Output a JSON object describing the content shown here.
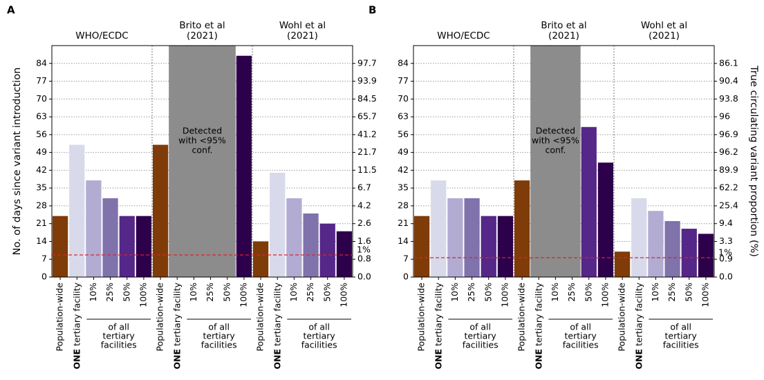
{
  "chart_data": [
    {
      "type": "bar",
      "panel_label": "A",
      "ylabel": "No. of days since variant introduction",
      "ylim": [
        0,
        91
      ],
      "yticks": [
        0,
        7,
        14,
        21,
        28,
        35,
        42,
        49,
        56,
        63,
        70,
        77,
        84
      ],
      "y2ticks": [
        {
          "value": 0,
          "label": "0.0"
        },
        0.8,
        1.6,
        2.6,
        4.2,
        6.7,
        11.5,
        21.7,
        41.2,
        65.7,
        84.5,
        93.9,
        97.7
      ],
      "grid": true,
      "categories": [
        "Population-wide",
        "ONE tertiary facility",
        "10%",
        "25%",
        "50%",
        "100%"
      ],
      "colors": [
        "#7f3b08",
        "#d8daeb",
        "#b2abd2",
        "#8073ac",
        "#542788",
        "#2d004b"
      ],
      "subgroup_label": [
        "of all",
        "tertiary",
        "facilities"
      ],
      "annotation": [
        "Detected",
        "with <95%",
        "conf."
      ],
      "threshold": 8.7,
      "threshold_label": "1%",
      "groups": [
        {
          "name": [
            "WHO/ECDC"
          ],
          "values": [
            24,
            52,
            38,
            31,
            24,
            24
          ]
        },
        {
          "name": [
            "Brito et al",
            "(2021)"
          ],
          "values": [
            52,
            null,
            null,
            null,
            null,
            87
          ]
        },
        {
          "name": [
            "Wohl et al",
            "(2021)"
          ],
          "values": [
            14,
            41,
            31,
            25,
            21,
            18
          ]
        }
      ]
    },
    {
      "type": "bar",
      "panel_label": "B",
      "y2label": "True circulating variant proportion (%)",
      "ylim": [
        0,
        91
      ],
      "yticks": [
        0,
        7,
        14,
        21,
        28,
        35,
        42,
        49,
        56,
        63,
        70,
        77,
        84
      ],
      "y2ticks": [
        {
          "value": 0,
          "label": "0.0"
        },
        0.9,
        3.3,
        9.4,
        25.4,
        62.2,
        89.9,
        96.2,
        96.9,
        96.0,
        93.8,
        90.4,
        86.1
      ],
      "grid": true,
      "categories": [
        "Population-wide",
        "ONE tertiary facility",
        "10%",
        "25%",
        "50%",
        "100%"
      ],
      "colors": [
        "#7f3b08",
        "#d8daeb",
        "#b2abd2",
        "#8073ac",
        "#542788",
        "#2d004b"
      ],
      "subgroup_label": [
        "of all",
        "tertiary",
        "facilities"
      ],
      "annotation": [
        "Detected",
        "with <95%",
        "conf."
      ],
      "threshold": 7.6,
      "threshold_label": "1%",
      "groups": [
        {
          "name": [
            "WHO/ECDC"
          ],
          "values": [
            24,
            38,
            31,
            31,
            24,
            24
          ]
        },
        {
          "name": [
            "Brito et al",
            "(2021)"
          ],
          "values": [
            38,
            null,
            null,
            null,
            59,
            45
          ]
        },
        {
          "name": [
            "Wohl et al",
            "(2021)"
          ],
          "values": [
            10,
            31,
            26,
            22,
            19,
            17
          ]
        }
      ]
    }
  ]
}
